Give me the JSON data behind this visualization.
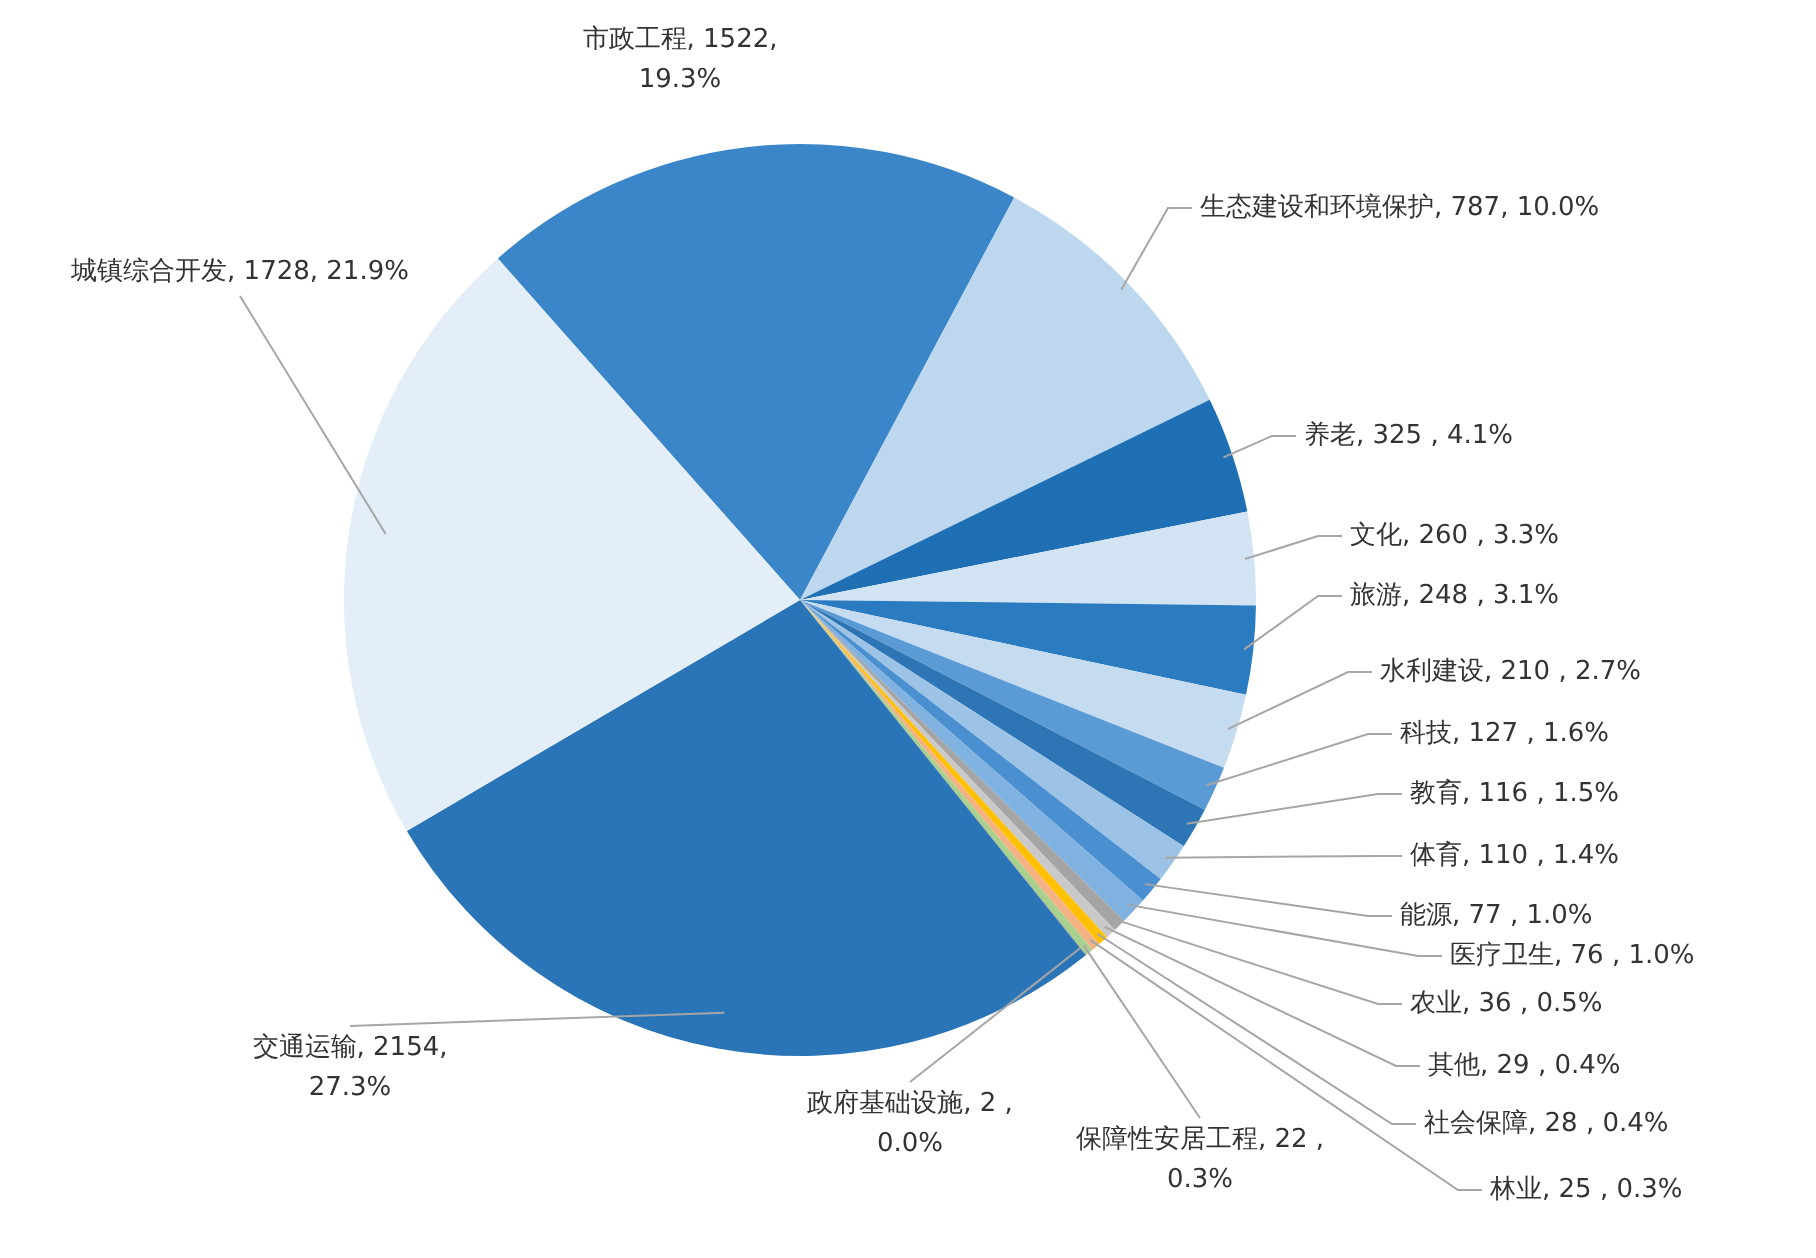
{
  "chart_data": {
    "type": "pie",
    "categories": [
      "市政工程",
      "生态建设和环境保护",
      "养老",
      "文化",
      "旅游",
      "水利建设",
      "科技",
      "教育",
      "体育",
      "能源",
      "医疗卫生",
      "农业",
      "其他",
      "社会保障",
      "林业",
      "保障性安居工程",
      "政府基础设施",
      "交通运输",
      "城镇综合开发"
    ],
    "values": [
      1522,
      787,
      325,
      260,
      248,
      210,
      127,
      116,
      110,
      77,
      76,
      36,
      29,
      28,
      25,
      22,
      2,
      2154,
      1728
    ],
    "value_labels": [
      "1522, 19.3%",
      "787, 10.0%",
      "325 , 4.1%",
      "260 , 3.3%",
      "248 , 3.1%",
      "210 , 2.7%",
      "127 , 1.6%",
      "116 , 1.5%",
      "110 , 1.4%",
      "77 , 1.0%",
      "76 , 1.0%",
      "36 , 0.5%",
      "29 , 0.4%",
      "28 , 0.4%",
      "25 , 0.3%",
      "22 , 0.3%",
      "2 , 0.0%",
      "2154, 27.3%",
      "1728, 21.9%"
    ],
    "colors": [
      "#3a86c8",
      "#bcd7ee",
      "#1f6fb4",
      "#d2e4f4",
      "#2b7bc0",
      "#c5dcf0",
      "#5b9bd5",
      "#2e75b6",
      "#9cc3e6",
      "#4a8fd0",
      "#7fb2e0",
      "#a5a5a5",
      "#c9c9c9",
      "#ffc000",
      "#f4b183",
      "#a9d18e",
      "#7f7f7f",
      "#2a74b8",
      "#e3eef8"
    ],
    "legend": false
  }
}
